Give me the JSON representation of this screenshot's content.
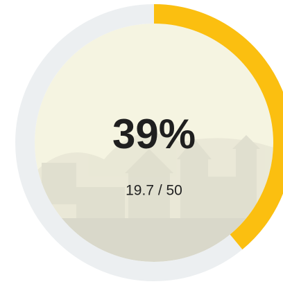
{
  "progress": {
    "value": 39,
    "label": "39%",
    "detail": "19.7 / 50",
    "color": "#fbbf10",
    "track_color": "#eceff1"
  }
}
